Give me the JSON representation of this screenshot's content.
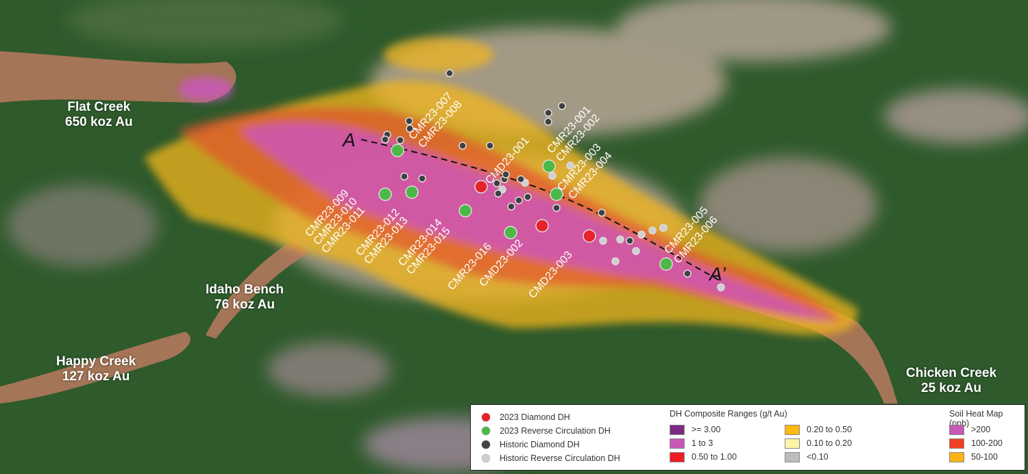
{
  "areas": [
    {
      "name": "Flat Creek",
      "resource": "650 koz Au"
    },
    {
      "name": "Idaho Bench",
      "resource": "76 koz Au"
    },
    {
      "name": "Happy Creek",
      "resource": "127 koz Au"
    },
    {
      "name": "Chicken Creek",
      "resource": "25 koz Au"
    }
  ],
  "section": {
    "start": "A",
    "end": "A’"
  },
  "drillholes": [
    {
      "id": "CMR23-007",
      "type": "rc2023"
    },
    {
      "id": "CMR23-008",
      "type": "rc2023"
    },
    {
      "id": "CMD23-001",
      "type": "dd2023"
    },
    {
      "id": "CMR23-001",
      "type": "rc2023"
    },
    {
      "id": "CMR23-002",
      "type": "rc2023"
    },
    {
      "id": "CMR23-003",
      "type": "rc2023"
    },
    {
      "id": "CMR23-004",
      "type": "rc2023"
    },
    {
      "id": "CMR23-009",
      "type": "rc2023"
    },
    {
      "id": "CMR23-010",
      "type": "rc2023"
    },
    {
      "id": "CMR23-011",
      "type": "rc2023"
    },
    {
      "id": "CMR23-012",
      "type": "rc2023"
    },
    {
      "id": "CMR23-013",
      "type": "rc2023"
    },
    {
      "id": "CMR23-014",
      "type": "rc2023"
    },
    {
      "id": "CMR23-015",
      "type": "rc2023"
    },
    {
      "id": "CMR23-016",
      "type": "rc2023"
    },
    {
      "id": "CMD23-002",
      "type": "dd2023"
    },
    {
      "id": "CMD23-003",
      "type": "dd2023"
    },
    {
      "id": "CMR23-005",
      "type": "rc2023"
    },
    {
      "id": "CMR23-006",
      "type": "rc2023"
    }
  ],
  "legend": {
    "symbols": [
      {
        "label": "2023 Diamond DH",
        "color": "#e8222a"
      },
      {
        "label": "2023 Reverse Circulation DH",
        "color": "#4cb847"
      },
      {
        "label": "Historic Diamond DH",
        "color": "#444444"
      },
      {
        "label": "Historic Reverse Circulation DH",
        "color": "#cfcfcf"
      }
    ],
    "composite_title": "DH Composite Ranges (g/t Au)",
    "composite": [
      {
        "label": ">= 3.00",
        "color": "#7b2a82"
      },
      {
        "label": "1 to 3",
        "color": "#c957b6"
      },
      {
        "label": "0.50 to 1.00",
        "color": "#ed1c24"
      },
      {
        "label": "0.20 to 0.50",
        "color": "#fdb813"
      },
      {
        "label": "0.10 to 0.20",
        "color": "#fbf5a8"
      },
      {
        "label": "<0.10",
        "color": "#bdbdbd"
      }
    ],
    "soil_title": "Soil Heat Map (ppb)",
    "soil": [
      {
        "label": ">200",
        "color": "#c957b6"
      },
      {
        "label": "100-200",
        "color": "#ef4123"
      },
      {
        "label": "50-100",
        "color": "#fbb216"
      }
    ]
  }
}
